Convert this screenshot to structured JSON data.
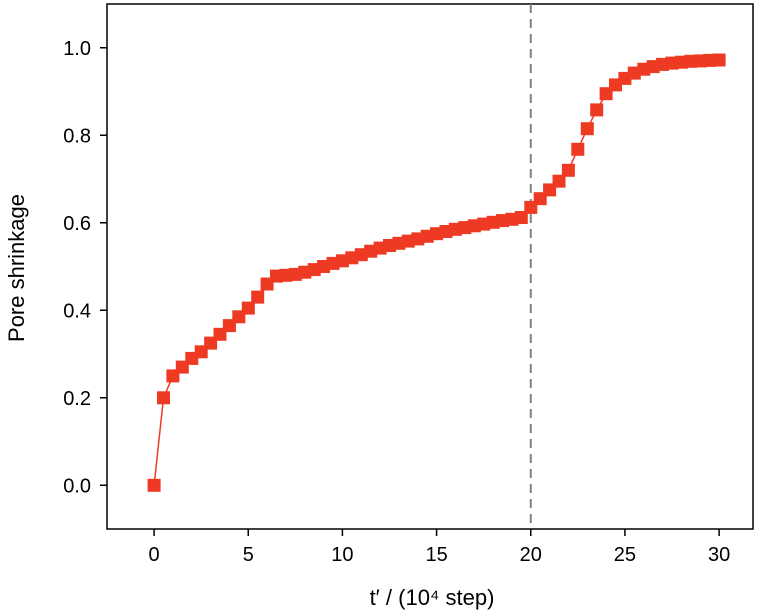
{
  "chart_data": {
    "type": "scatter",
    "xlabel": "t′ / (10⁴ step)",
    "ylabel": "Pore shrinkage",
    "xlim": [
      -2.5,
      31.8
    ],
    "ylim": [
      -0.1,
      1.1
    ],
    "xticks": [
      0,
      5,
      10,
      15,
      20,
      25,
      30
    ],
    "yticks": [
      0.0,
      0.2,
      0.4,
      0.6,
      0.8,
      1.0
    ],
    "grid": false,
    "reference_line": {
      "axis": "x",
      "value": 20,
      "style": "dashed",
      "color": "#808080"
    },
    "series": [
      {
        "marker": "square",
        "color": "#ee3a22",
        "line": "solid",
        "x": [
          0,
          0.5,
          1,
          1.5,
          2,
          2.5,
          3,
          3.5,
          4,
          4.5,
          5,
          5.5,
          6,
          6.5,
          7,
          7.5,
          8,
          8.5,
          9,
          9.5,
          10,
          10.5,
          11,
          11.5,
          12,
          12.5,
          13,
          13.5,
          14,
          14.5,
          15,
          15.5,
          16,
          16.5,
          17,
          17.5,
          18,
          18.5,
          19,
          19.5,
          20,
          20.5,
          21,
          21.5,
          22,
          22.5,
          23,
          23.5,
          24,
          24.5,
          25,
          25.5,
          26,
          26.5,
          27,
          27.5,
          28,
          28.5,
          29,
          29.5,
          30
        ],
        "y": [
          0.0,
          0.2,
          0.25,
          0.27,
          0.29,
          0.305,
          0.325,
          0.345,
          0.365,
          0.385,
          0.405,
          0.43,
          0.46,
          0.478,
          0.48,
          0.482,
          0.487,
          0.493,
          0.5,
          0.507,
          0.513,
          0.52,
          0.527,
          0.535,
          0.542,
          0.548,
          0.553,
          0.558,
          0.563,
          0.569,
          0.575,
          0.58,
          0.585,
          0.589,
          0.593,
          0.597,
          0.601,
          0.605,
          0.608,
          0.612,
          0.635,
          0.655,
          0.675,
          0.695,
          0.72,
          0.768,
          0.815,
          0.858,
          0.895,
          0.915,
          0.93,
          0.942,
          0.951,
          0.957,
          0.962,
          0.965,
          0.967,
          0.969,
          0.97,
          0.971,
          0.972
        ]
      }
    ]
  }
}
